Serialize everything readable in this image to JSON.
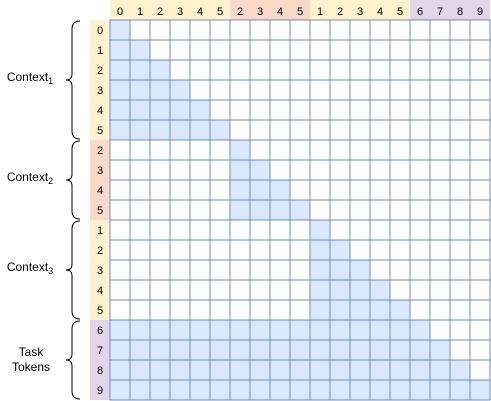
{
  "columns": {
    "labels": [
      "0",
      "1",
      "2",
      "3",
      "4",
      "5",
      "2",
      "3",
      "4",
      "5",
      "1",
      "2",
      "3",
      "4",
      "5",
      "6",
      "7",
      "8",
      "9"
    ],
    "groups": [
      0,
      0,
      0,
      0,
      0,
      0,
      1,
      1,
      1,
      1,
      2,
      2,
      2,
      2,
      2,
      3,
      3,
      3,
      3
    ]
  },
  "rows": {
    "labels": [
      "0",
      "1",
      "2",
      "3",
      "4",
      "5",
      "2",
      "3",
      "4",
      "5",
      "1",
      "2",
      "3",
      "4",
      "5",
      "6",
      "7",
      "8",
      "9"
    ],
    "groups": [
      0,
      0,
      0,
      0,
      0,
      0,
      1,
      1,
      1,
      1,
      2,
      2,
      2,
      2,
      2,
      3,
      3,
      3,
      3
    ]
  },
  "segments": [
    {
      "name": "Context",
      "subscript": "1",
      "kind": "context"
    },
    {
      "name": "Context",
      "subscript": "2",
      "kind": "context"
    },
    {
      "name": "Context",
      "subscript": "3",
      "kind": "context"
    },
    {
      "name": "Task",
      "name_line2": "Tokens",
      "kind": "task"
    }
  ],
  "colors": {
    "context_header": "#fff2cc",
    "context_header_alt": "#fad9c8",
    "task_header": "#e1d5e7",
    "attended_cell": "#dae8fc",
    "empty_cell": "#ffffff",
    "grid_line": "#6c8ebf"
  }
}
